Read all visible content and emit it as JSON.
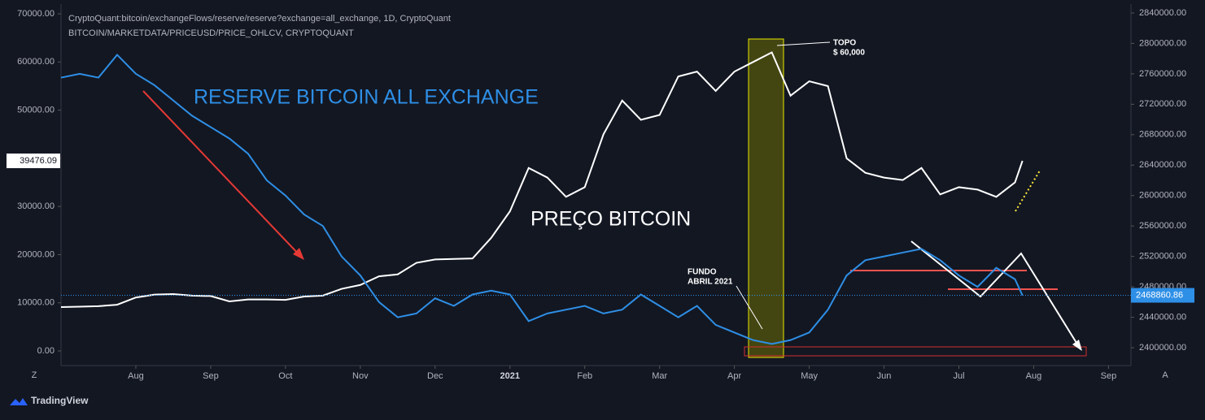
{
  "chart_data": {
    "type": "line",
    "header": [
      "CryptoQuant:bitcoin/exchangeFlows/reserve/reserve?exchange=all_exchange, 1D, CryptoQuant",
      "BITCOIN/MARKETDATA/PRICEUSD/PRICE_OHLCV, CRYPTOQUANT"
    ],
    "annotations": {
      "reserve": "RESERVE BITCOIN ALL EXCHANGE",
      "price": "PREÇO BITCOIN",
      "top": "TOPO",
      "top_price": "$ 60,000",
      "bottom": "FUNDO",
      "bottom_date": "ABRIL 2021"
    },
    "x": [
      0,
      0.25,
      0.5,
      0.75,
      1,
      1.25,
      1.5,
      1.75,
      2,
      2.25,
      2.5,
      2.75,
      3,
      3.25,
      3.5,
      3.75,
      4,
      4.25,
      4.5,
      4.75,
      5,
      5.25,
      5.5,
      5.75,
      6,
      6.25,
      6.5,
      6.75,
      7,
      7.25,
      7.5,
      7.75,
      8,
      8.25,
      8.5,
      8.75,
      9,
      9.25,
      9.5,
      9.75,
      10,
      10.25,
      10.5,
      10.75,
      11,
      11.25,
      11.5,
      11.75,
      12,
      12.25,
      12.5,
      12.75,
      12.85
    ],
    "series": [
      {
        "name": "PRICE_OHLCV",
        "color": "#ffffff",
        "axis": "y",
        "values": [
          9100,
          9200,
          9300,
          9600,
          11100,
          11700,
          11800,
          11500,
          11400,
          10300,
          10700,
          10700,
          10600,
          11300,
          11500,
          12900,
          13700,
          15500,
          15900,
          18300,
          19000,
          19100,
          19200,
          23500,
          29000,
          38000,
          36000,
          32000,
          34000,
          45000,
          52000,
          48000,
          49000,
          57000,
          58000,
          54000,
          58000,
          60000,
          62000,
          53000,
          56000,
          55000,
          40000,
          37000,
          36000,
          35500,
          38000,
          32500,
          34000,
          33500,
          32000,
          35000,
          39476.09
        ],
        "last_value": 39476.09
      },
      {
        "name": "reserve",
        "color": "#2e8fe6",
        "axis": "y2",
        "values": [
          2755000,
          2760000,
          2755000,
          2785000,
          2760000,
          2745000,
          2725000,
          2705000,
          2690000,
          2675000,
          2655000,
          2620000,
          2600000,
          2575000,
          2560000,
          2520000,
          2495000,
          2460000,
          2440000,
          2445000,
          2465000,
          2455000,
          2470000,
          2475000,
          2470000,
          2435000,
          2445000,
          2450000,
          2455000,
          2445000,
          2450000,
          2470000,
          2455000,
          2440000,
          2455000,
          2430000,
          2420000,
          2410000,
          2405000,
          2410000,
          2420000,
          2450000,
          2495000,
          2515000,
          2520000,
          2525000,
          2530000,
          2515000,
          2495000,
          2480000,
          2505000,
          2490000,
          2468860.86
        ],
        "last_value": 2468860.86
      }
    ],
    "xlim": [
      0,
      14.3
    ],
    "xticks": [
      {
        "value": 1,
        "label": "Aug"
      },
      {
        "value": 2,
        "label": "Sep"
      },
      {
        "value": 3,
        "label": "Oct"
      },
      {
        "value": 4,
        "label": "Nov"
      },
      {
        "value": 5,
        "label": "Dec"
      },
      {
        "value": 6,
        "label": "2021"
      },
      {
        "value": 7,
        "label": "Feb"
      },
      {
        "value": 8,
        "label": "Mar"
      },
      {
        "value": 9,
        "label": "Apr"
      },
      {
        "value": 10,
        "label": "May"
      },
      {
        "value": 11,
        "label": "Jun"
      },
      {
        "value": 12,
        "label": "Jul"
      },
      {
        "value": 13,
        "label": "Aug"
      },
      {
        "value": 14,
        "label": "Sep"
      }
    ],
    "ylim": [
      -3035,
      72030
    ],
    "yticks": [
      {
        "value": 0,
        "label": "0.00"
      },
      {
        "value": 10000,
        "label": "10000.00"
      },
      {
        "value": 20000,
        "label": "20000.00"
      },
      {
        "value": 30000,
        "label": "30000.00"
      },
      {
        "value": 40000,
        "label": "40000.00"
      },
      {
        "value": 50000,
        "label": "50000.00"
      },
      {
        "value": 60000,
        "label": "60000.00"
      },
      {
        "value": 70000,
        "label": "70000.00"
      }
    ],
    "y2lim": [
      2376530,
      2851700
    ],
    "y2ticks": [
      {
        "value": 2400000,
        "label": "2400000.00"
      },
      {
        "value": 2440000,
        "label": "2440000.00"
      },
      {
        "value": 2480000,
        "label": "2480000.00"
      },
      {
        "value": 2520000,
        "label": "2520000.00"
      },
      {
        "value": 2560000,
        "label": "2560000.00"
      },
      {
        "value": 2600000,
        "label": "2600000.00"
      },
      {
        "value": 2640000,
        "label": "2640000.00"
      },
      {
        "value": 2680000,
        "label": "2680000.00"
      },
      {
        "value": 2720000,
        "label": "2720000.00"
      },
      {
        "value": 2760000,
        "label": "2760000.00"
      },
      {
        "value": 2800000,
        "label": "2800000.00"
      },
      {
        "value": 2840000,
        "label": "2840000.00"
      }
    ],
    "grid": false,
    "corner_left": "Z",
    "corner_right": "A",
    "brand": "TradingView"
  }
}
